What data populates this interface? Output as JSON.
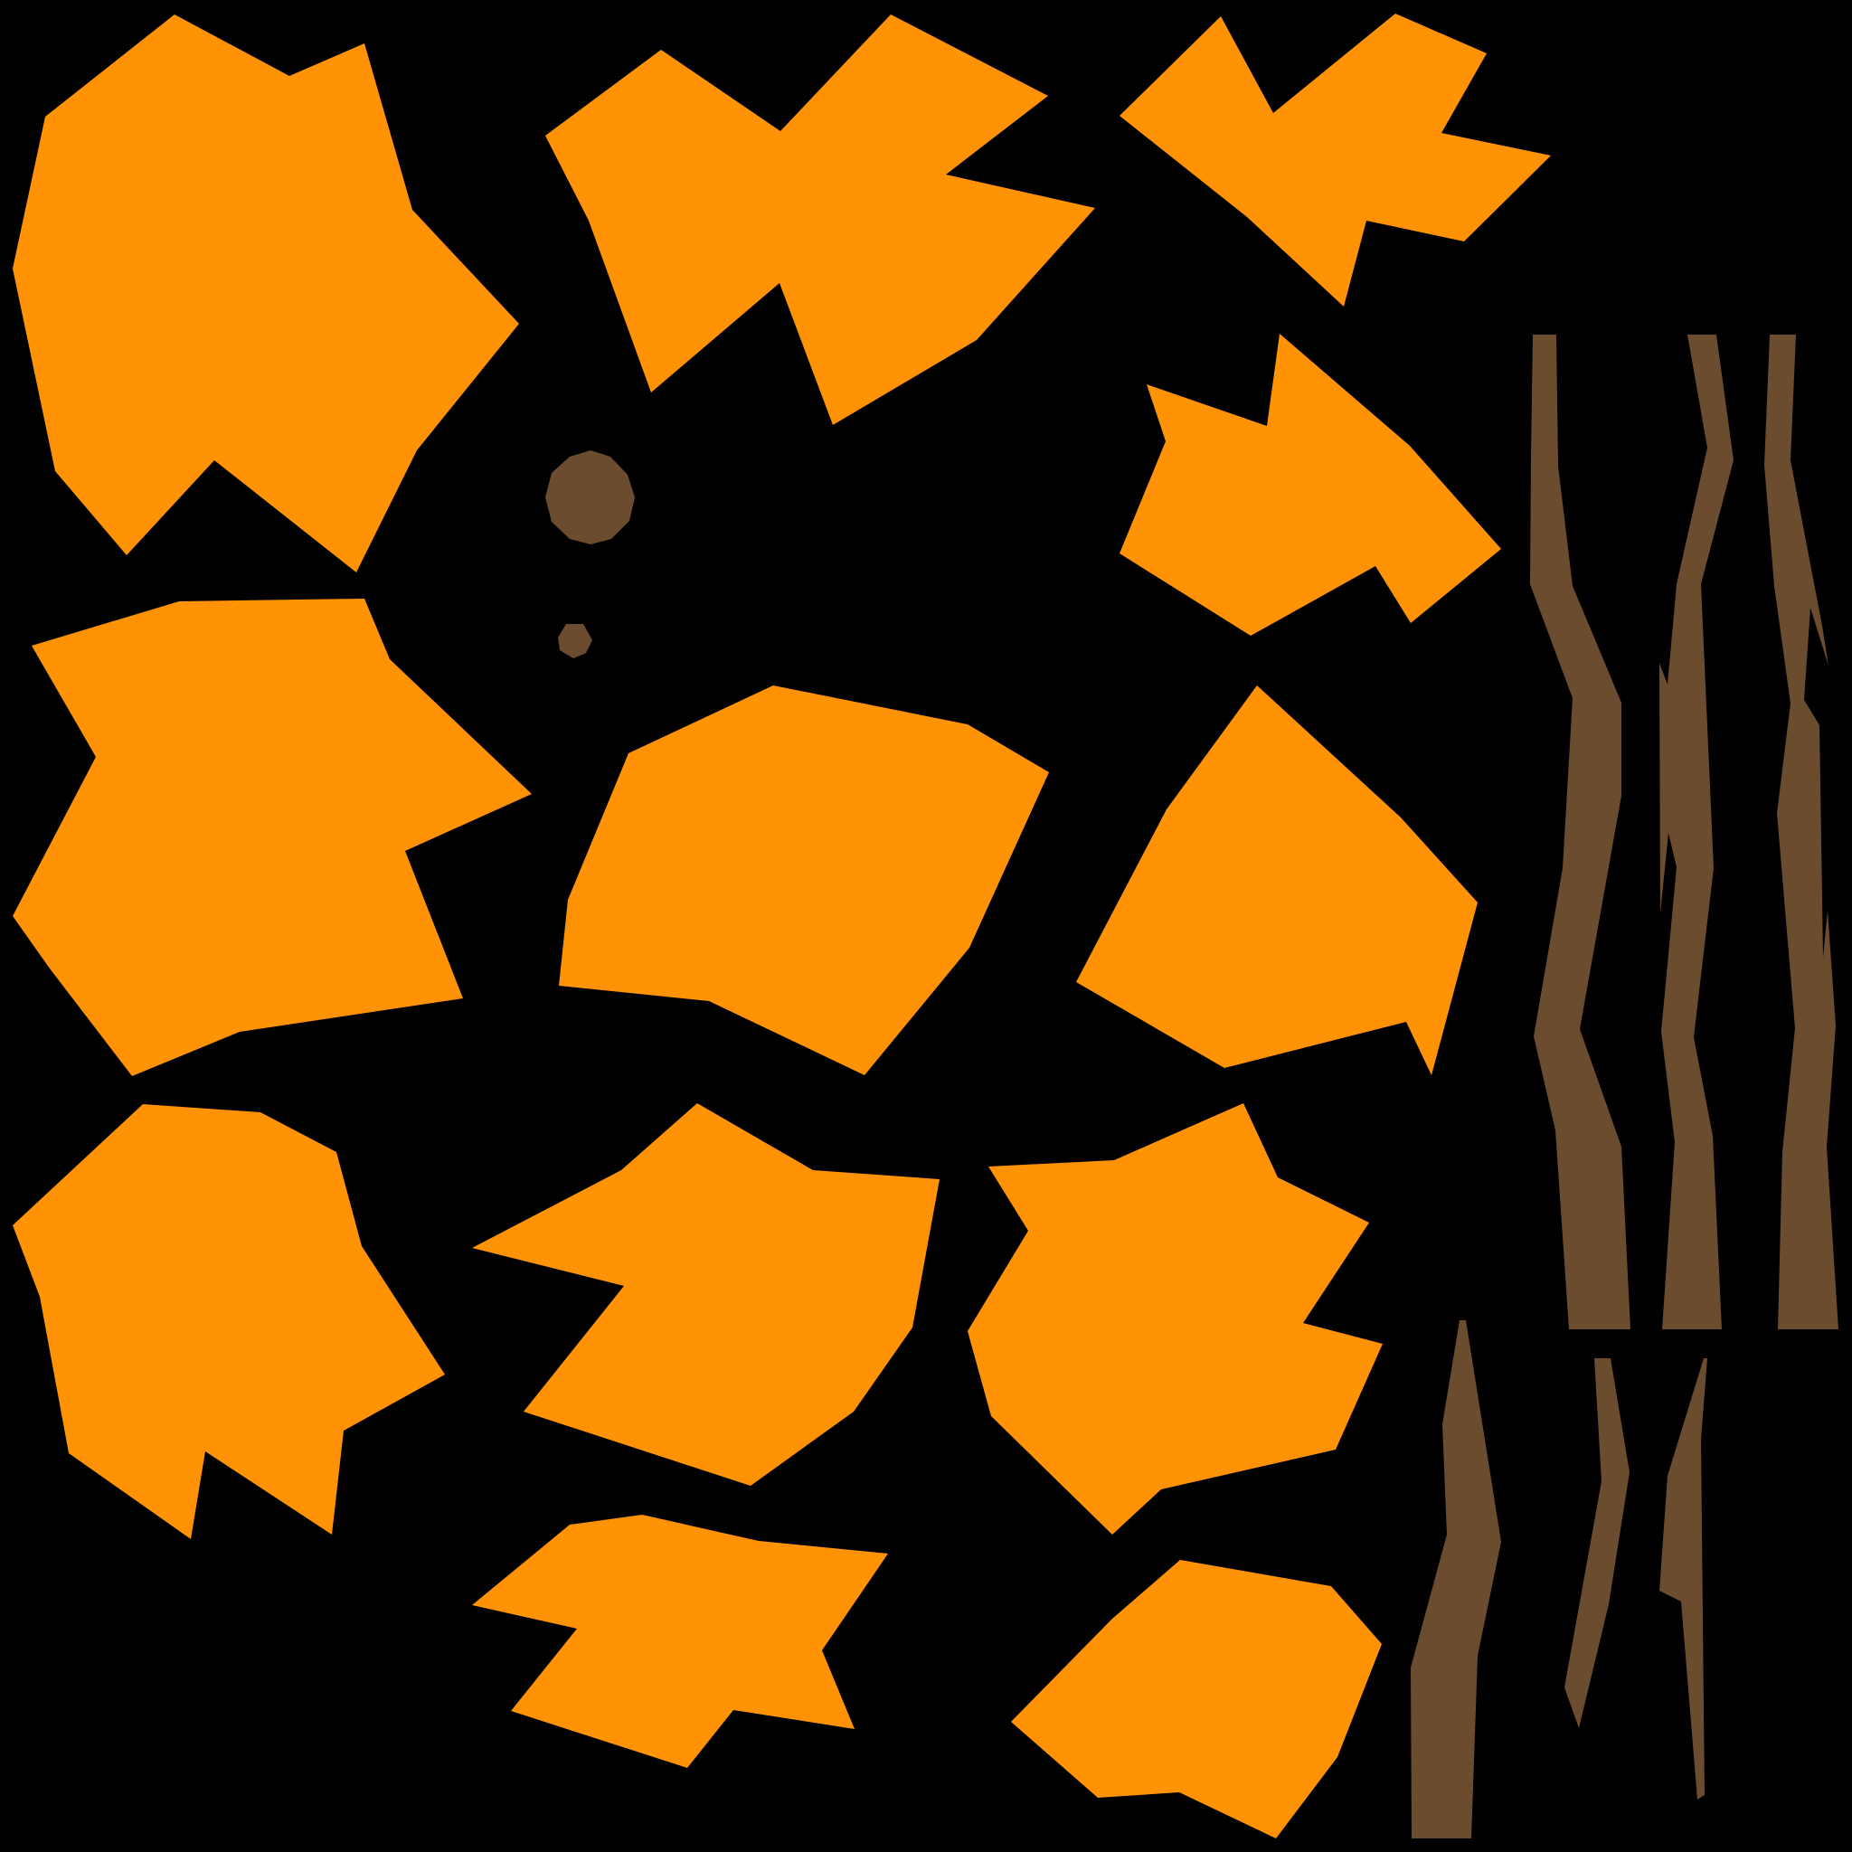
{
  "texture_atlas": {
    "background_color": "#000000",
    "colors": {
      "leaf": "#ff9305",
      "bark": "#6b4c2f"
    },
    "pieces": [
      {
        "kind": "leaf"
      },
      {
        "kind": "leaf"
      },
      {
        "kind": "leaf"
      },
      {
        "kind": "leaf"
      },
      {
        "kind": "leaf"
      },
      {
        "kind": "leaf"
      },
      {
        "kind": "leaf"
      },
      {
        "kind": "leaf"
      },
      {
        "kind": "leaf"
      },
      {
        "kind": "leaf"
      },
      {
        "kind": "leaf"
      },
      {
        "kind": "leaf"
      },
      {
        "kind": "leaf"
      },
      {
        "kind": "bark"
      },
      {
        "kind": "bark"
      },
      {
        "kind": "bark"
      },
      {
        "kind": "bark"
      },
      {
        "kind": "bark"
      },
      {
        "kind": "bark"
      },
      {
        "kind": "knot"
      },
      {
        "kind": "knot"
      }
    ]
  }
}
